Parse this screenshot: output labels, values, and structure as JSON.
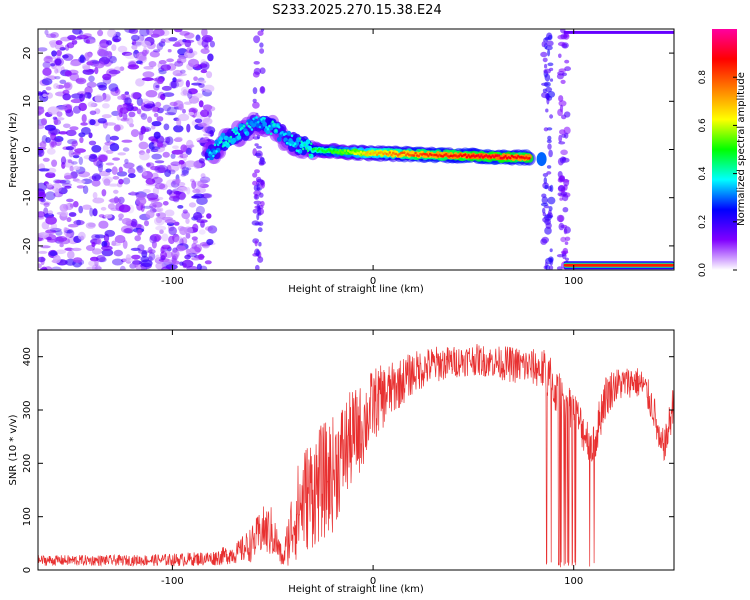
{
  "figure_title": "S233.2025.270.15.38.E24",
  "chart_data": [
    {
      "type": "heatmap",
      "title": "S233.2025.270.15.38.E24",
      "xlabel": "Height of straight line (km)",
      "ylabel": "Frequency (Hz)",
      "xlim": [
        -167,
        150
      ],
      "ylim": [
        -25,
        25
      ],
      "xticks": [
        -100,
        0,
        100
      ],
      "yticks": [
        -20,
        -10,
        0,
        10,
        20
      ],
      "grid": false,
      "colorbar": {
        "label": "Normalized spectral amplitude",
        "range": [
          0,
          1
        ],
        "ticks": [
          "0.0",
          "0.2",
          "0.4",
          "0.6",
          "0.8"
        ],
        "colors": [
          "#ffffff",
          "#8000ff",
          "#0000ff",
          "#00ffff",
          "#00ff00",
          "#ffff00",
          "#ff8000",
          "#ff0000",
          "#ff00a0"
        ]
      },
      "noise_region": {
        "x_range": [
          -167,
          -80
        ],
        "freq_range": [
          -25,
          25
        ],
        "amplitude": 0.2
      },
      "track": [
        {
          "x": -82,
          "f": -1.5,
          "a": 0.35
        },
        {
          "x": -75,
          "f": 1.5,
          "a": 0.4
        },
        {
          "x": -66,
          "f": 3.5,
          "a": 0.4
        },
        {
          "x": -58,
          "f": 5.5,
          "a": 0.35
        },
        {
          "x": -50,
          "f": 4.5,
          "a": 0.4
        },
        {
          "x": -44,
          "f": 2.5,
          "a": 0.35
        },
        {
          "x": -38,
          "f": 1.0,
          "a": 0.4
        },
        {
          "x": -30,
          "f": 0.0,
          "a": 0.45
        },
        {
          "x": -15,
          "f": -0.5,
          "a": 0.55
        },
        {
          "x": 0,
          "f": -0.8,
          "a": 0.7
        },
        {
          "x": 20,
          "f": -1.0,
          "a": 0.8
        },
        {
          "x": 40,
          "f": -1.2,
          "a": 0.85
        },
        {
          "x": 60,
          "f": -1.5,
          "a": 0.9
        },
        {
          "x": 78,
          "f": -1.7,
          "a": 0.85
        }
      ],
      "edge_streak": {
        "x_range": [
          95,
          150
        ],
        "f": -24,
        "a": 0.85
      }
    },
    {
      "type": "line",
      "xlabel": "Height of straight line (km)",
      "ylabel": "SNR (10 * v/v)",
      "xlim": [
        -167,
        150
      ],
      "ylim": [
        0,
        450
      ],
      "xticks": [
        -100,
        0,
        100
      ],
      "yticks": [
        0,
        100,
        200,
        300,
        400
      ],
      "grid": false,
      "series": [
        {
          "name": "SNR",
          "color": "#e83030",
          "x": [
            -167,
            -120,
            -100,
            -80,
            -68,
            -60,
            -55,
            -50,
            -45,
            -40,
            -35,
            -30,
            -25,
            -20,
            -15,
            -10,
            -5,
            0,
            10,
            20,
            30,
            40,
            50,
            60,
            70,
            80,
            85,
            88,
            90,
            95,
            100,
            105,
            110,
            115,
            120,
            125,
            130,
            135,
            140,
            143,
            146,
            150
          ],
          "mean": [
            18,
            18,
            19,
            22,
            32,
            50,
            75,
            70,
            18,
            90,
            130,
            150,
            165,
            180,
            220,
            250,
            270,
            310,
            340,
            370,
            385,
            390,
            395,
            390,
            385,
            380,
            375,
            360,
            340,
            320,
            300,
            260,
            230,
            320,
            345,
            350,
            355,
            345,
            300,
            230,
            240,
            320
          ],
          "amp": [
            10,
            10,
            12,
            14,
            20,
            35,
            45,
            50,
            14,
            80,
            100,
            110,
            110,
            110,
            100,
            90,
            80,
            70,
            50,
            40,
            35,
            30,
            30,
            30,
            35,
            35,
            40,
            45,
            45,
            40,
            40,
            40,
            40,
            45,
            35,
            30,
            30,
            30,
            35,
            30,
            35,
            40
          ],
          "dropouts": [
            [
              86,
              111
            ]
          ]
        }
      ]
    }
  ]
}
